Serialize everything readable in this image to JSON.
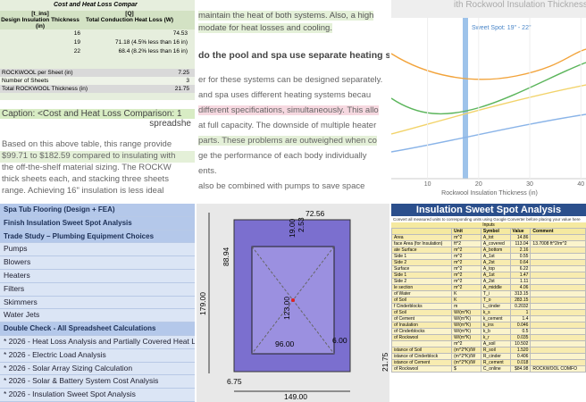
{
  "panel_1": {
    "table_title": "Cost and Heat Loss Compar",
    "header": [
      "[t_ins]",
      "Design Insulation Thickness (in)",
      "[Q]",
      "Total Conduction Heat Loss (W)"
    ],
    "rows": [
      [
        "16",
        "74.53"
      ],
      [
        "19",
        "71.18 (4.5% less than 16 in)"
      ],
      [
        "22",
        "68.4 (8.2% less than 16 in)"
      ]
    ],
    "summary": [
      [
        "ROCKWOOL per Sheet (in)",
        "7.25"
      ],
      [
        "Number of Sheets",
        "3"
      ],
      [
        "Total ROCKWOOL Thickness (in)",
        "21.75"
      ]
    ],
    "caption": [
      "Caption: <Cost and Heat Loss Comparison: 1",
      "spreadshe"
    ],
    "body": [
      "Based on this above table, this range provide",
      "$99.71 to $182.59 compared to insulating with",
      "the off-the-shelf material sizing. The ROCKW",
      "thick sheets each, and stacking three sheets",
      "range. Achieving 16\" insulation is less ideal"
    ]
  },
  "panel_2": {
    "lines": [
      "maintain the heat of both systems. Also, a high",
      "modate for heat losses and cooling."
    ],
    "heading": "do the pool and spa use separate heating sys",
    "body": [
      "er for these systems can be designed separately.",
      "and spa uses different heating systems becau",
      "different specifications, simultaneously. This allo",
      "at full capacity. The downside of multiple heater",
      "parts. These problems are outweighed when co",
      "ge the performance of each body individually",
      "ents.",
      "also be combined with pumps to save space"
    ]
  },
  "panel_3": {
    "title": "ith Rockwool Insulation Thickness",
    "annotation": "Sweet Spot: 19\" - 22\"",
    "x_label": "Rockwool Insulation Thickness (in)",
    "xlim": [
      5,
      41
    ],
    "xticks": [
      10,
      20,
      30,
      40
    ]
  },
  "panel_4": {
    "items": [
      "Spa Tub Flooring (Design + FEA)",
      "Finish Insulation Sweet Spot Analysis",
      "Trade Study –  Plumbing Equipment Choices",
      "Pumps",
      "Blowers",
      "Heaters",
      "Filters",
      "Skimmers",
      "Water Jets",
      "Double Check - All Spreadsheet Calculations",
      "* 2026 - Heat Loss Analysis and Partially Covered Heat L",
      "* 2026 - Electric Load Analysis",
      "* 2026 - Solar Array Sizing Calculation",
      "* 2026 - Solar & Battery System Cost Analysis",
      "* 2026 - Insulation Sweet Spot Analysis"
    ]
  },
  "panel_5": {
    "dims": [
      "72.56",
      "88.94",
      "19.00",
      "2.53",
      "123.00",
      "96.00",
      "6.00",
      "179.00",
      "21.75",
      "6.75",
      "149.00"
    ]
  },
  "panel_6": {
    "title": "Insulation Sweet Spot Analysis",
    "note": "Convert all measured units to corresponding units using Google Converter before placing your value here",
    "section": "Inputs",
    "header": [
      "Unit",
      "Symbol",
      "Value",
      "Comment"
    ],
    "rows": [
      [
        "Area",
        "m^2",
        "A_tot",
        "14.86",
        ""
      ],
      [
        "face Area (for Insulation)",
        "ft^2",
        "A_covered",
        "113.04",
        "13.7008 ft^2/m^2"
      ],
      [
        "ate Surface",
        "m^2",
        "A_bottom",
        "2.16",
        ""
      ],
      [
        "Side 1",
        "m^2",
        "A_1st",
        "0.55",
        ""
      ],
      [
        "Side 2",
        "m^2",
        "A_2st",
        "0.64",
        ""
      ],
      [
        "Surface",
        "m^2",
        "A_top",
        "6.22",
        ""
      ],
      [
        "Side 1",
        "m^2",
        "A_1st",
        "1.47",
        ""
      ],
      [
        "Side 2",
        "m^2",
        "A_2st",
        "1.11",
        ""
      ],
      [
        "le section",
        "m^2",
        "A_middle",
        "4.06",
        ""
      ],
      [
        "of Water",
        "K",
        "T_i",
        "313.15",
        ""
      ],
      [
        "of Soil",
        "K",
        "T_o",
        "283.15",
        ""
      ],
      [
        "f Cinderblocks",
        "m",
        "L_cinder",
        "0.2032",
        ""
      ],
      [
        "of Soil",
        "W/(m*K)",
        "k_s",
        "1",
        ""
      ],
      [
        "of Cement",
        "W/(m*K)",
        "k_cement",
        "1.4",
        ""
      ],
      [
        "of Insulation",
        "W/(m*K)",
        "k_ins",
        "0.046",
        ""
      ],
      [
        "of Cinderblocks",
        "W/(m*K)",
        "k_b",
        "0.5",
        ""
      ],
      [
        "of Rockwool",
        "W/(m*K)",
        "k_r",
        "0.035",
        ""
      ],
      [
        "",
        "m^2",
        "A_soil",
        "10.502",
        ""
      ],
      [
        "istance of Soil",
        "(m^2*K)/W",
        "R_soil",
        "1.520",
        ""
      ],
      [
        "istance of Cinderblock",
        "(m^2*K)/W",
        "R_cinder",
        "0.406",
        ""
      ],
      [
        "istance of Cement",
        "(m^2*K)/W",
        "R_cement",
        "0.018",
        ""
      ],
      [
        "of Rockwool",
        "$",
        "C_online",
        "$84.98",
        "ROCKWOOL COMFO"
      ]
    ]
  }
}
